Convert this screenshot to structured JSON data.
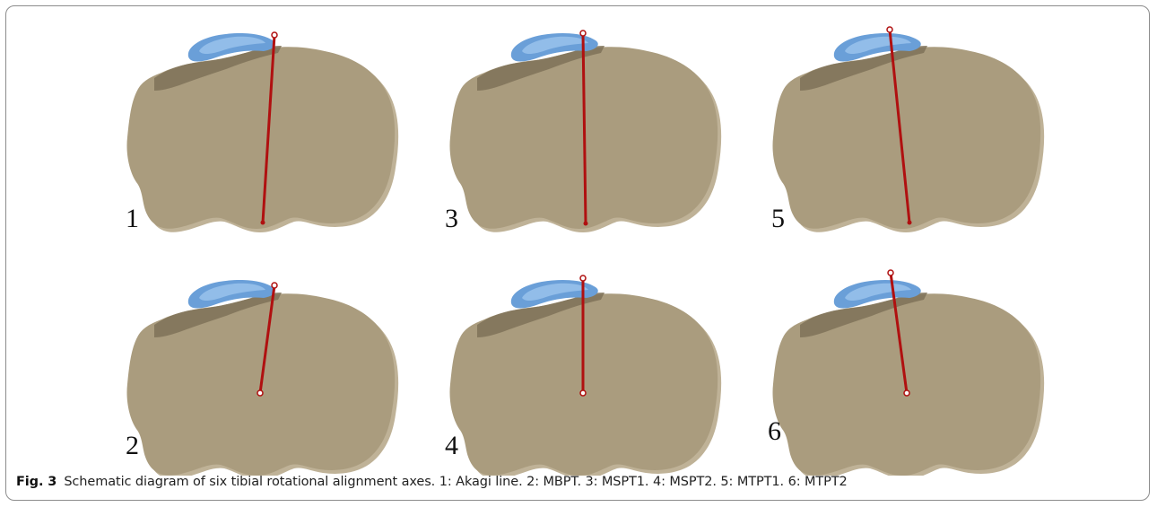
{
  "figure": {
    "label": "Fig. 3",
    "caption": "Schematic diagram of six tibial rotational alignment axes. 1: Akagi line. 2: MBPT. 3: MSPT1. 4: MSPT2. 5: MTPT1. 6: MTPT2"
  },
  "panels": [
    {
      "number": "1"
    },
    {
      "number": "2"
    },
    {
      "number": "3"
    },
    {
      "number": "4"
    },
    {
      "number": "5"
    },
    {
      "number": "6"
    }
  ],
  "colors": {
    "bone": "#aa9c7e",
    "bone_shadow": "#7f7258",
    "tendon": "#6a9fd8",
    "tendon_light": "#9cc4ee",
    "axis_line": "#b01010",
    "frame_border": "#8c8c8c"
  }
}
